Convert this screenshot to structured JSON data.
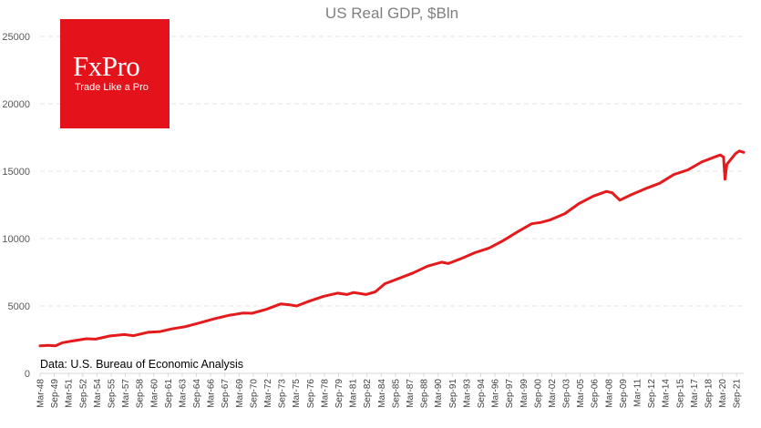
{
  "logo": {
    "name": "FxPro",
    "tagline": "Trade Like a Pro",
    "color": "#e4131b"
  },
  "source_note": "Data: U.S. Bureau of Economic Analysis",
  "chart_data": {
    "type": "line",
    "title": "US Real GDP, $Bln",
    "xlabel": "",
    "ylabel": "",
    "ylim": [
      0,
      25000
    ],
    "yticks": [
      0,
      5000,
      10000,
      15000,
      20000,
      25000
    ],
    "grid": true,
    "tick_labels": [
      "Mar-48",
      "Sep-49",
      "Mar-51",
      "Sep-52",
      "Mar-54",
      "Sep-55",
      "Mar-57",
      "Sep-58",
      "Mar-60",
      "Sep-61",
      "Mar-63",
      "Sep-64",
      "Mar-66",
      "Sep-67",
      "Mar-69",
      "Sep-70",
      "Mar-72",
      "Sep-73",
      "Mar-75",
      "Sep-76",
      "Mar-78",
      "Sep-79",
      "Mar-81",
      "Sep-82",
      "Mar-84",
      "Sep-85",
      "Mar-87",
      "Sep-88",
      "Mar-90",
      "Sep-91",
      "Mar-93",
      "Sep-94",
      "Mar-96",
      "Sep-97",
      "Mar-99",
      "Sep-00",
      "Mar-02",
      "Sep-03",
      "Mar-05",
      "Sep-06",
      "Mar-08",
      "Sep-09",
      "Mar-11",
      "Sep-12",
      "Mar-14",
      "Sep-15",
      "Mar-17",
      "Sep-18",
      "Mar-20",
      "Sep-21"
    ],
    "x_start": 1948.125,
    "x_end": 2022.375,
    "series": [
      {
        "name": "Real GDP",
        "color": "#e41a1c",
        "points": [
          [
            1948.125,
            2050
          ],
          [
            1949.0,
            2080
          ],
          [
            1949.75,
            2050
          ],
          [
            1950.5,
            2280
          ],
          [
            1951.5,
            2400
          ],
          [
            1953.0,
            2570
          ],
          [
            1954.0,
            2540
          ],
          [
            1955.5,
            2780
          ],
          [
            1957.0,
            2880
          ],
          [
            1958.0,
            2800
          ],
          [
            1959.5,
            3050
          ],
          [
            1960.8,
            3100
          ],
          [
            1962.0,
            3300
          ],
          [
            1963.5,
            3470
          ],
          [
            1965.0,
            3760
          ],
          [
            1966.5,
            4050
          ],
          [
            1968.0,
            4300
          ],
          [
            1969.5,
            4470
          ],
          [
            1970.5,
            4460
          ],
          [
            1972.0,
            4750
          ],
          [
            1973.5,
            5150
          ],
          [
            1974.5,
            5080
          ],
          [
            1975.2,
            5000
          ],
          [
            1976.5,
            5350
          ],
          [
            1978.0,
            5700
          ],
          [
            1979.5,
            5950
          ],
          [
            1980.5,
            5850
          ],
          [
            1981.2,
            6000
          ],
          [
            1982.5,
            5850
          ],
          [
            1983.5,
            6050
          ],
          [
            1984.5,
            6650
          ],
          [
            1986.0,
            7050
          ],
          [
            1987.5,
            7450
          ],
          [
            1989.0,
            7950
          ],
          [
            1990.5,
            8250
          ],
          [
            1991.2,
            8150
          ],
          [
            1992.5,
            8500
          ],
          [
            1994.0,
            8950
          ],
          [
            1995.5,
            9300
          ],
          [
            1997.0,
            9850
          ],
          [
            1998.5,
            10500
          ],
          [
            2000.0,
            11100
          ],
          [
            2001.0,
            11200
          ],
          [
            2002.0,
            11400
          ],
          [
            2003.5,
            11850
          ],
          [
            2005.0,
            12600
          ],
          [
            2006.5,
            13150
          ],
          [
            2007.9,
            13500
          ],
          [
            2008.5,
            13400
          ],
          [
            2009.3,
            12850
          ],
          [
            2010.5,
            13250
          ],
          [
            2012.0,
            13700
          ],
          [
            2013.5,
            14100
          ],
          [
            2015.0,
            14750
          ],
          [
            2016.5,
            15100
          ],
          [
            2018.0,
            15700
          ],
          [
            2019.5,
            16100
          ],
          [
            2019.9,
            16200
          ],
          [
            2020.25,
            16050
          ],
          [
            2020.4,
            14400
          ],
          [
            2020.6,
            15500
          ],
          [
            2021.5,
            16300
          ],
          [
            2021.9,
            16500
          ],
          [
            2022.375,
            16400
          ]
        ]
      }
    ]
  }
}
